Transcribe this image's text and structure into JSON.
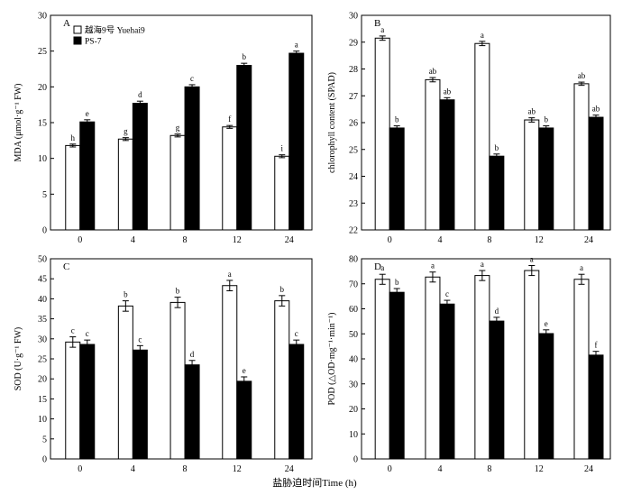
{
  "legend": [
    {
      "label": "越海9号 Yuehai9",
      "fill": "#ffffff"
    },
    {
      "label": "PS-7",
      "fill": "#000000"
    }
  ],
  "x_title": "盐胁迫时间Time (h)",
  "chart_data": [
    {
      "type": "bar",
      "panel": "A",
      "categories": [
        "0",
        "4",
        "8",
        "12",
        "24"
      ],
      "ylabel": "MDA (μmol·g⁻¹ FW)",
      "ylim": [
        0,
        30
      ],
      "yticks": [
        0,
        5,
        10,
        15,
        20,
        25,
        30
      ],
      "series": [
        {
          "name": "越海9号 Yuehai9",
          "values": [
            11.8,
            12.7,
            13.2,
            14.4,
            10.3
          ],
          "errors": [
            0.2,
            0.2,
            0.2,
            0.2,
            0.2
          ],
          "letters": [
            "h",
            "g",
            "g",
            "f",
            "i"
          ]
        },
        {
          "name": "PS-7",
          "values": [
            15.1,
            17.7,
            20.0,
            23.0,
            24.7
          ],
          "errors": [
            0.3,
            0.3,
            0.3,
            0.3,
            0.3
          ],
          "letters": [
            "e",
            "d",
            "c",
            "b",
            "a"
          ]
        }
      ]
    },
    {
      "type": "bar",
      "panel": "B",
      "categories": [
        "0",
        "4",
        "8",
        "12",
        "24"
      ],
      "ylabel": "chlorophyll content (SPAD)",
      "ylim": [
        22,
        30
      ],
      "yticks": [
        22,
        23,
        24,
        25,
        26,
        27,
        28,
        29,
        30
      ],
      "series": [
        {
          "name": "越海9号 Yuehai9",
          "values": [
            29.15,
            27.6,
            28.95,
            26.1,
            27.45
          ],
          "errors": [
            0.08,
            0.08,
            0.08,
            0.08,
            0.06
          ],
          "letters": [
            "a",
            "ab",
            "a",
            "ab",
            "ab"
          ]
        },
        {
          "name": "PS-7",
          "values": [
            25.8,
            26.85,
            24.75,
            25.8,
            26.2
          ],
          "errors": [
            0.08,
            0.08,
            0.08,
            0.08,
            0.08
          ],
          "letters": [
            "b",
            "ab",
            "b",
            "b",
            "ab"
          ]
        }
      ]
    },
    {
      "type": "bar",
      "panel": "C",
      "categories": [
        "0",
        "4",
        "8",
        "12",
        "24"
      ],
      "ylabel": "SOD (U·g⁻¹ FW)",
      "ylim": [
        0,
        50
      ],
      "yticks": [
        0,
        5,
        10,
        15,
        20,
        25,
        30,
        35,
        40,
        45,
        50
      ],
      "series": [
        {
          "name": "越海9号 Yuehai9",
          "values": [
            29.2,
            38.2,
            39.1,
            43.3,
            39.5
          ],
          "errors": [
            1.3,
            1.3,
            1.3,
            1.3,
            1.3
          ],
          "letters": [
            "c",
            "b",
            "b",
            "a",
            "b"
          ]
        },
        {
          "name": "PS-7",
          "values": [
            28.6,
            27.2,
            23.5,
            19.4,
            28.6
          ],
          "errors": [
            1.1,
            1.1,
            1.1,
            1.1,
            1.1
          ],
          "letters": [
            "c",
            "c",
            "d",
            "e",
            "c"
          ]
        }
      ]
    },
    {
      "type": "bar",
      "panel": "D",
      "categories": [
        "0",
        "4",
        "8",
        "12",
        "24"
      ],
      "ylabel": "POD (△OD·mg⁻¹·min⁻¹)",
      "ylim": [
        0,
        80
      ],
      "yticks": [
        0,
        10,
        20,
        30,
        40,
        50,
        60,
        70,
        80
      ],
      "series": [
        {
          "name": "越海9号 Yuehai9",
          "values": [
            71.8,
            72.7,
            73.3,
            75.3,
            71.8
          ],
          "errors": [
            2.0,
            2.0,
            2.0,
            2.0,
            2.0
          ],
          "letters": [
            "a",
            "a",
            "a",
            "a",
            "a"
          ]
        },
        {
          "name": "PS-7",
          "values": [
            66.6,
            61.9,
            55.1,
            50.1,
            41.5
          ],
          "errors": [
            1.5,
            1.5,
            1.5,
            1.5,
            1.5
          ],
          "letters": [
            "b",
            "c",
            "d",
            "e",
            "f"
          ]
        }
      ]
    }
  ]
}
